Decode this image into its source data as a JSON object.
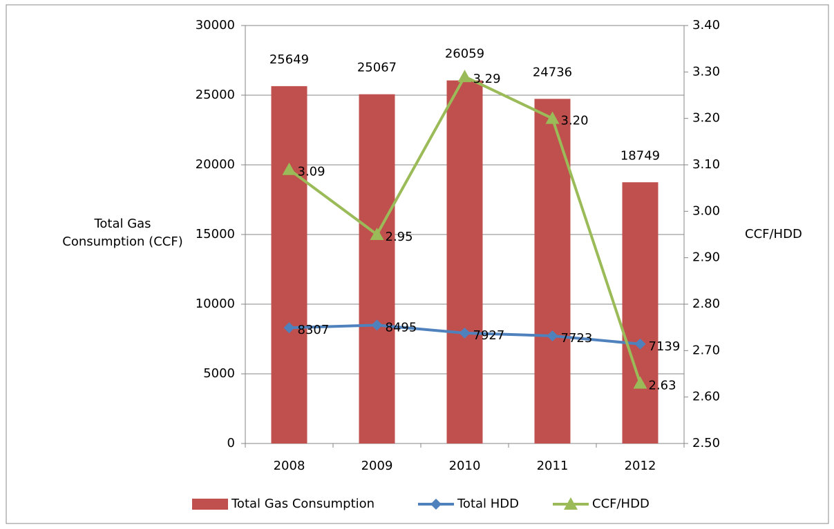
{
  "chart_data": {
    "type": "bar",
    "categories": [
      "2008",
      "2009",
      "2010",
      "2011",
      "2012"
    ],
    "series": [
      {
        "name": "Total Gas Consumption",
        "type": "bar",
        "color": "#c0504d",
        "values": [
          25649,
          25067,
          26059,
          24736,
          18749
        ]
      },
      {
        "name": "Total HDD",
        "type": "line",
        "marker": "diamond",
        "color": "#4f81bd",
        "values": [
          8307,
          8495,
          7927,
          7723,
          7139
        ]
      },
      {
        "name": "CCF/HDD",
        "type": "line",
        "marker": "triangle",
        "axis": "y2",
        "color": "#9bbb59",
        "values": [
          3.09,
          2.95,
          3.29,
          3.2,
          2.63
        ],
        "value_labels": [
          "3.09",
          "2.95",
          "3.29",
          "3.20",
          "2.63"
        ]
      }
    ],
    "y_label": "Total Gas Consumption (CCF)",
    "y2_label": "CCF/HDD",
    "ylim": [
      0,
      30000
    ],
    "yticks": [
      0,
      5000,
      10000,
      15000,
      20000,
      25000,
      30000
    ],
    "y2lim": [
      2.5,
      3.4
    ],
    "y2ticks": [
      {
        "value": 2.5,
        "label": "2.50"
      },
      {
        "value": 2.6,
        "label": "2.60"
      },
      {
        "value": 2.7,
        "label": "2.70"
      },
      {
        "value": 2.8,
        "label": "2.80"
      },
      {
        "value": 2.9,
        "label": "2.90"
      },
      {
        "value": 3.0,
        "label": "3.00"
      },
      {
        "value": 3.1,
        "label": "3.10"
      },
      {
        "value": 3.2,
        "label": "3.20"
      },
      {
        "value": 3.3,
        "label": "3.30"
      },
      {
        "value": 3.4,
        "label": "3.40"
      }
    ],
    "grid": true,
    "legend": "bottom"
  }
}
